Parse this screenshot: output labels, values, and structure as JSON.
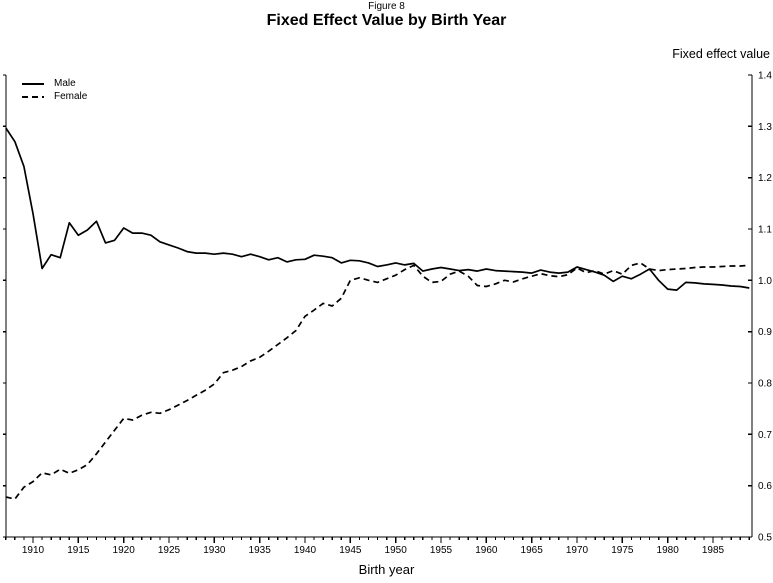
{
  "chart_data": {
    "type": "line",
    "figure_label": "Figure 8",
    "title": "Fixed Effect Value by Birth Year",
    "xlabel": "Birth year",
    "ylabel": "Fixed effect value",
    "xlim": [
      1906.5,
      1989.5
    ],
    "ylim": [
      0.5,
      1.4
    ],
    "grid": false,
    "legend_position": "top-left",
    "background": "#ffffff",
    "line_color": "#000000",
    "x_major_ticks": [
      1910,
      1915,
      1920,
      1925,
      1930,
      1935,
      1940,
      1945,
      1950,
      1955,
      1960,
      1965,
      1970,
      1975,
      1980,
      1985
    ],
    "x_minor_tick_interval": 1,
    "y_ticks": [
      0.5,
      0.6,
      0.7,
      0.8,
      0.9,
      1.0,
      1.1,
      1.2,
      1.3,
      1.4
    ],
    "x": [
      1907,
      1908,
      1909,
      1910,
      1911,
      1912,
      1913,
      1914,
      1915,
      1916,
      1917,
      1918,
      1919,
      1920,
      1921,
      1922,
      1923,
      1924,
      1925,
      1926,
      1927,
      1928,
      1929,
      1930,
      1931,
      1932,
      1933,
      1934,
      1935,
      1936,
      1937,
      1938,
      1939,
      1940,
      1941,
      1942,
      1943,
      1944,
      1945,
      1946,
      1947,
      1948,
      1949,
      1950,
      1951,
      1952,
      1953,
      1954,
      1955,
      1956,
      1957,
      1958,
      1959,
      1960,
      1961,
      1962,
      1963,
      1964,
      1965,
      1966,
      1967,
      1968,
      1969,
      1970,
      1971,
      1972,
      1973,
      1974,
      1975,
      1976,
      1977,
      1978,
      1979,
      1980,
      1981,
      1982,
      1983,
      1984,
      1985,
      1986,
      1987,
      1988,
      1989
    ],
    "series": [
      {
        "name": "Male",
        "style": "solid",
        "values": [
          1.297,
          1.27,
          1.222,
          1.13,
          1.023,
          1.05,
          1.044,
          1.112,
          1.088,
          1.098,
          1.115,
          1.073,
          1.078,
          1.102,
          1.092,
          1.092,
          1.088,
          1.075,
          1.069,
          1.063,
          1.056,
          1.053,
          1.053,
          1.051,
          1.053,
          1.051,
          1.046,
          1.051,
          1.046,
          1.04,
          1.044,
          1.036,
          1.04,
          1.041,
          1.049,
          1.047,
          1.044,
          1.034,
          1.039,
          1.038,
          1.034,
          1.027,
          1.03,
          1.034,
          1.03,
          1.033,
          1.018,
          1.022,
          1.025,
          1.022,
          1.019,
          1.021,
          1.018,
          1.022,
          1.019,
          1.018,
          1.017,
          1.016,
          1.014,
          1.02,
          1.016,
          1.014,
          1.016,
          1.026,
          1.021,
          1.016,
          1.01,
          0.998,
          1.008,
          1.003,
          1.012,
          1.022,
          1.0,
          0.983,
          0.981,
          0.996,
          0.995,
          0.993,
          0.992,
          0.991,
          0.989,
          0.988,
          0.985
        ]
      },
      {
        "name": "Female",
        "style": "dashed",
        "values": [
          0.578,
          0.574,
          0.597,
          0.608,
          0.625,
          0.621,
          0.632,
          0.624,
          0.631,
          0.641,
          0.662,
          0.685,
          0.708,
          0.731,
          0.728,
          0.737,
          0.743,
          0.741,
          0.748,
          0.757,
          0.766,
          0.776,
          0.786,
          0.798,
          0.82,
          0.825,
          0.832,
          0.843,
          0.85,
          0.862,
          0.875,
          0.888,
          0.902,
          0.93,
          0.942,
          0.955,
          0.95,
          0.965,
          1.0,
          1.005,
          1.0,
          0.996,
          1.003,
          1.01,
          1.021,
          1.029,
          1.008,
          0.996,
          0.998,
          1.012,
          1.018,
          1.008,
          0.99,
          0.988,
          0.993,
          1.0,
          0.997,
          1.003,
          1.008,
          1.013,
          1.009,
          1.007,
          1.011,
          1.024,
          1.015,
          1.019,
          1.012,
          1.019,
          1.012,
          1.029,
          1.034,
          1.022,
          1.019,
          1.021,
          1.022,
          1.023,
          1.025,
          1.026,
          1.026,
          1.027,
          1.028,
          1.028,
          1.029
        ]
      }
    ]
  }
}
